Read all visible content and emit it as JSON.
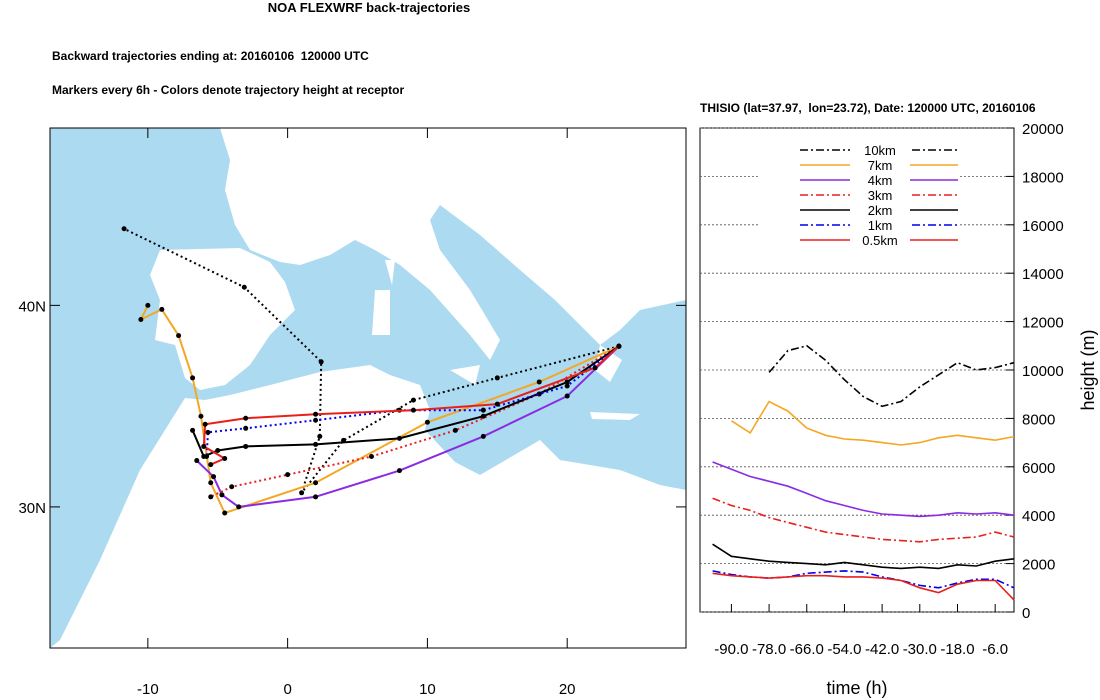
{
  "header": {
    "title": "NOA FLEXWRF back-trajectories",
    "line1": "Backward trajectories ending at: 20160106  120000 UTC",
    "line2": "Markers every 6h - Colors denote trajectory height at receptor"
  },
  "chart_data": [
    {
      "type": "trajectory_map",
      "xlim": [
        -17,
        28.5
      ],
      "ylim": [
        23,
        48.8
      ],
      "xticks": [
        -10,
        0,
        10,
        20
      ],
      "yticks": [
        {
          "value": 30,
          "label": "30N"
        },
        {
          "value": 40,
          "label": "40N"
        }
      ],
      "series": [
        {
          "color": "#000000",
          "dash": "dotted",
          "x": [
            23.7,
            15,
            9,
            4,
            1,
            2.3,
            2.4,
            -3.1,
            -11.7
          ],
          "values": [
            37.97,
            36.4,
            35.3,
            33.3,
            30.7,
            33.5,
            37.2,
            40.9,
            43.8
          ]
        },
        {
          "color": "#f5a623",
          "dash": "solid",
          "x": [
            23.7,
            18,
            10,
            2,
            -4.5,
            -5.5,
            -6.2,
            -6.8,
            -7.8,
            -9,
            -10.5,
            -10
          ],
          "values": [
            37.97,
            36.2,
            34.2,
            31.2,
            29.7,
            31.2,
            34.5,
            36.4,
            38.5,
            39.8,
            39.3,
            40.0
          ]
        },
        {
          "color": "#8a2be2",
          "dash": "solid",
          "x": [
            23.7,
            20,
            14,
            8,
            2,
            -3.5,
            -4.7,
            -5.3,
            -6.5
          ],
          "values": [
            37.97,
            35.5,
            33.5,
            31.8,
            30.5,
            30.0,
            30.6,
            31.5,
            32.3
          ]
        },
        {
          "color": "#e8201c",
          "dash": "dotted",
          "x": [
            23.7,
            18,
            12,
            6,
            0,
            -4,
            -5.5
          ],
          "values": [
            37.97,
            35.6,
            33.8,
            32.5,
            31.6,
            31.0,
            30.5
          ]
        },
        {
          "color": "#000000",
          "dash": "solid",
          "x": [
            23.7,
            20,
            14,
            8,
            2,
            -3,
            -5,
            -6,
            -6.8
          ],
          "values": [
            37.97,
            36.2,
            34.5,
            33.4,
            33.1,
            33.0,
            32.8,
            32.5,
            33.8
          ]
        },
        {
          "color": "#0000ee",
          "dash": "dotted",
          "x": [
            23.7,
            20,
            14,
            8,
            2,
            -3,
            -5.7,
            -5.8
          ],
          "values": [
            37.97,
            36.0,
            34.8,
            34.8,
            34.3,
            33.9,
            33.7,
            32.5
          ]
        },
        {
          "color": "#e8201c",
          "dash": "solid",
          "x": [
            23.7,
            22,
            15,
            9,
            2,
            -3,
            -5.9,
            -6,
            -4.5,
            -5.5
          ],
          "values": [
            37.97,
            36.9,
            35.1,
            34.8,
            34.6,
            34.4,
            34.1,
            33.0,
            32.4,
            32.1
          ]
        }
      ]
    },
    {
      "type": "line",
      "title": "THISIO (lat=37.97,  lon=23.72), Date: 120000 UTC, 20160106",
      "x_label": "time (h)",
      "y_label": "height (m)",
      "xlim": [
        -100,
        0
      ],
      "ylim": [
        0,
        20000
      ],
      "xticks": [
        {
          "value": -90,
          "label": "-90.0"
        },
        {
          "value": -78,
          "label": "-78.0"
        },
        {
          "value": -66,
          "label": "-66.0"
        },
        {
          "value": -54,
          "label": "-54.0"
        },
        {
          "value": -42,
          "label": "-42.0"
        },
        {
          "value": -30,
          "label": "-30.0"
        },
        {
          "value": -18,
          "label": "-18.0"
        },
        {
          "value": -6,
          "label": "-6.0"
        }
      ],
      "yticks": [
        0,
        2000,
        4000,
        6000,
        8000,
        10000,
        12000,
        14000,
        16000,
        18000,
        20000
      ],
      "grid": true,
      "x": [
        -96,
        -90,
        -84,
        -78,
        -72,
        -66,
        -60,
        -54,
        -48,
        -42,
        -36,
        -30,
        -24,
        -18,
        -12,
        -6,
        0
      ],
      "series": [
        {
          "name": "10km",
          "color": "#000000",
          "dash": "dashdot",
          "values": [
            null,
            null,
            null,
            9900,
            10800,
            11000,
            10400,
            9600,
            8900,
            8500,
            8700,
            9300,
            9800,
            10300,
            10000,
            10100,
            10300
          ]
        },
        {
          "name": "7km",
          "color": "#f5a623",
          "dash": "solid",
          "values": [
            null,
            7900,
            7400,
            8700,
            8300,
            7600,
            7300,
            7150,
            7100,
            7000,
            6900,
            7000,
            7200,
            7300,
            7200,
            7100,
            7250
          ]
        },
        {
          "name": "4km",
          "color": "#8a2be2",
          "dash": "solid",
          "values": [
            6200,
            5900,
            5600,
            5400,
            5200,
            4900,
            4600,
            4400,
            4200,
            4050,
            4000,
            3950,
            4000,
            4100,
            4050,
            4100,
            4000
          ]
        },
        {
          "name": "3km",
          "color": "#e8201c",
          "dash": "dashdot",
          "values": [
            4700,
            4400,
            4200,
            3900,
            3700,
            3500,
            3300,
            3200,
            3100,
            3000,
            2950,
            2900,
            3000,
            3050,
            3100,
            3300,
            3100
          ]
        },
        {
          "name": "2km",
          "color": "#000000",
          "dash": "solid",
          "values": [
            2800,
            2300,
            2200,
            2100,
            2050,
            2000,
            1950,
            2050,
            1950,
            1850,
            1800,
            1850,
            1800,
            1950,
            1900,
            2100,
            2200
          ]
        },
        {
          "name": "1km",
          "color": "#0000ee",
          "dash": "dashdot",
          "values": [
            1700,
            1550,
            1450,
            1400,
            1450,
            1600,
            1650,
            1700,
            1650,
            1450,
            1300,
            1100,
            1000,
            1200,
            1350,
            1350,
            1000
          ]
        },
        {
          "name": "0.5km",
          "color": "#e8201c",
          "dash": "solid",
          "values": [
            1600,
            1500,
            1450,
            1400,
            1450,
            1500,
            1500,
            1450,
            1450,
            1400,
            1300,
            1000,
            800,
            1150,
            1300,
            1300,
            500
          ]
        }
      ]
    }
  ]
}
